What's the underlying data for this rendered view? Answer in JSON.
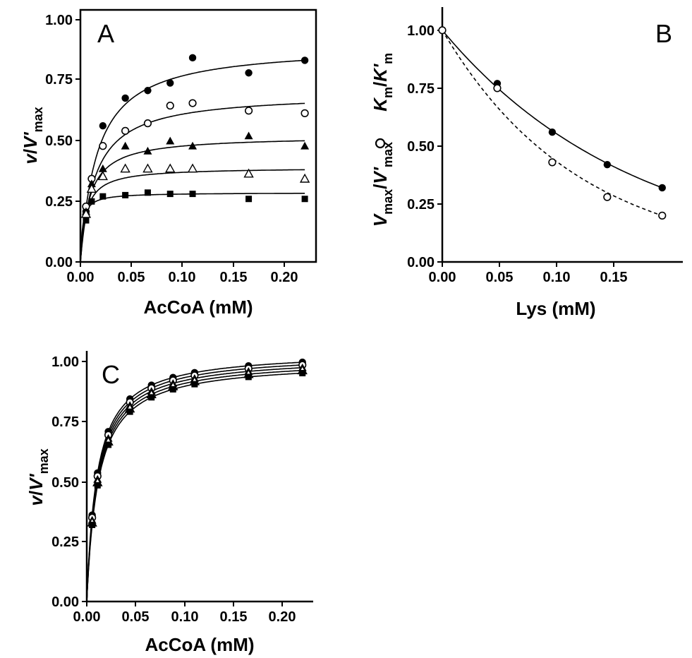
{
  "chart_data": [
    {
      "panel": "A",
      "type": "scatter",
      "xlabel": "AcCoA (mM)",
      "ylabel_parts": [
        "v",
        "/",
        "V'",
        "max"
      ],
      "xlim": [
        0,
        0.21
      ],
      "ylim": [
        0,
        1.0
      ],
      "xticks": [
        "0.00",
        "0.05",
        "0.10",
        "0.15",
        "0.20"
      ],
      "yticks": [
        "0.00",
        "0.25",
        "0.50",
        "0.75",
        "1.00"
      ],
      "x": [
        0.005,
        0.01,
        0.02,
        0.04,
        0.06,
        0.08,
        0.1,
        0.15,
        0.2
      ],
      "series": [
        {
          "marker": "filled-circle",
          "values": [
            0.2,
            0.33,
            0.54,
            0.65,
            0.68,
            0.71,
            0.81,
            0.75,
            0.8
          ],
          "fit": {
            "vmax": 0.86,
            "km": 0.015
          }
        },
        {
          "marker": "open-circle",
          "values": [
            0.22,
            0.33,
            0.46,
            0.52,
            0.55,
            0.62,
            0.63,
            0.6,
            0.59
          ],
          "fit": {
            "vmax": 0.67,
            "km": 0.013
          }
        },
        {
          "marker": "filled-triangle",
          "values": [
            0.2,
            0.31,
            0.37,
            0.46,
            0.44,
            0.48,
            0.46,
            0.5,
            0.46
          ],
          "fit": {
            "vmax": 0.5,
            "km": 0.008
          }
        },
        {
          "marker": "open-triangle",
          "values": [
            0.19,
            0.29,
            0.34,
            0.37,
            0.37,
            0.37,
            0.37,
            0.35,
            0.33
          ],
          "fit": {
            "vmax": 0.375,
            "km": 0.005
          }
        },
        {
          "marker": "filled-square",
          "values": [
            0.165,
            0.24,
            0.26,
            0.265,
            0.275,
            0.27,
            0.27,
            0.25,
            0.25
          ],
          "fit": {
            "vmax": 0.275,
            "km": 0.002
          }
        }
      ]
    },
    {
      "panel": "B",
      "type": "scatter",
      "xlabel": "Lys (mM)",
      "ylabel_parts": [
        "V",
        "max",
        "/",
        "V'",
        "max",
        "K",
        "m",
        "/",
        "K'",
        "m"
      ],
      "xlim": [
        0,
        0.175
      ],
      "ylim": [
        0,
        1.1
      ],
      "xticks": [
        "0.00",
        "0.05",
        "0.10",
        "0.15"
      ],
      "yticks": [
        "0.00",
        "0.25",
        "0.50",
        "0.75",
        "1.00"
      ],
      "x": [
        0.0,
        0.04,
        0.08,
        0.12,
        0.16
      ],
      "series": [
        {
          "marker": "filled-circle",
          "line": "solid",
          "values": [
            1.0,
            0.77,
            0.56,
            0.42,
            0.32
          ]
        },
        {
          "marker": "open-circle",
          "line": "dashed",
          "values": [
            1.0,
            0.75,
            0.43,
            0.28,
            0.2
          ]
        }
      ]
    },
    {
      "panel": "C",
      "type": "scatter",
      "xlabel": "AcCoA (mM)",
      "ylabel_parts": [
        "v",
        "/",
        "V'",
        "max"
      ],
      "xlim": [
        0,
        0.21
      ],
      "ylim": [
        0,
        1.0
      ],
      "xticks": [
        "0.00",
        "0.05",
        "0.10",
        "0.15",
        "0.20"
      ],
      "yticks": [
        "0.00",
        "0.25",
        "0.50",
        "0.75",
        "1.00"
      ],
      "x": [
        0.005,
        0.01,
        0.02,
        0.04,
        0.06,
        0.08,
        0.1,
        0.15,
        0.2
      ],
      "series": [
        {
          "marker": "filled-circle",
          "fit": {
            "vmax": 1.0,
            "km": 0.0095
          }
        },
        {
          "marker": "open-circle",
          "fit": {
            "vmax": 0.99,
            "km": 0.0098
          }
        },
        {
          "marker": "filled-triangle",
          "fit": {
            "vmax": 0.98,
            "km": 0.0101
          }
        },
        {
          "marker": "open-triangle",
          "fit": {
            "vmax": 0.97,
            "km": 0.0104
          }
        },
        {
          "marker": "filled-square",
          "fit": {
            "vmax": 0.96,
            "km": 0.0107
          }
        }
      ]
    }
  ]
}
